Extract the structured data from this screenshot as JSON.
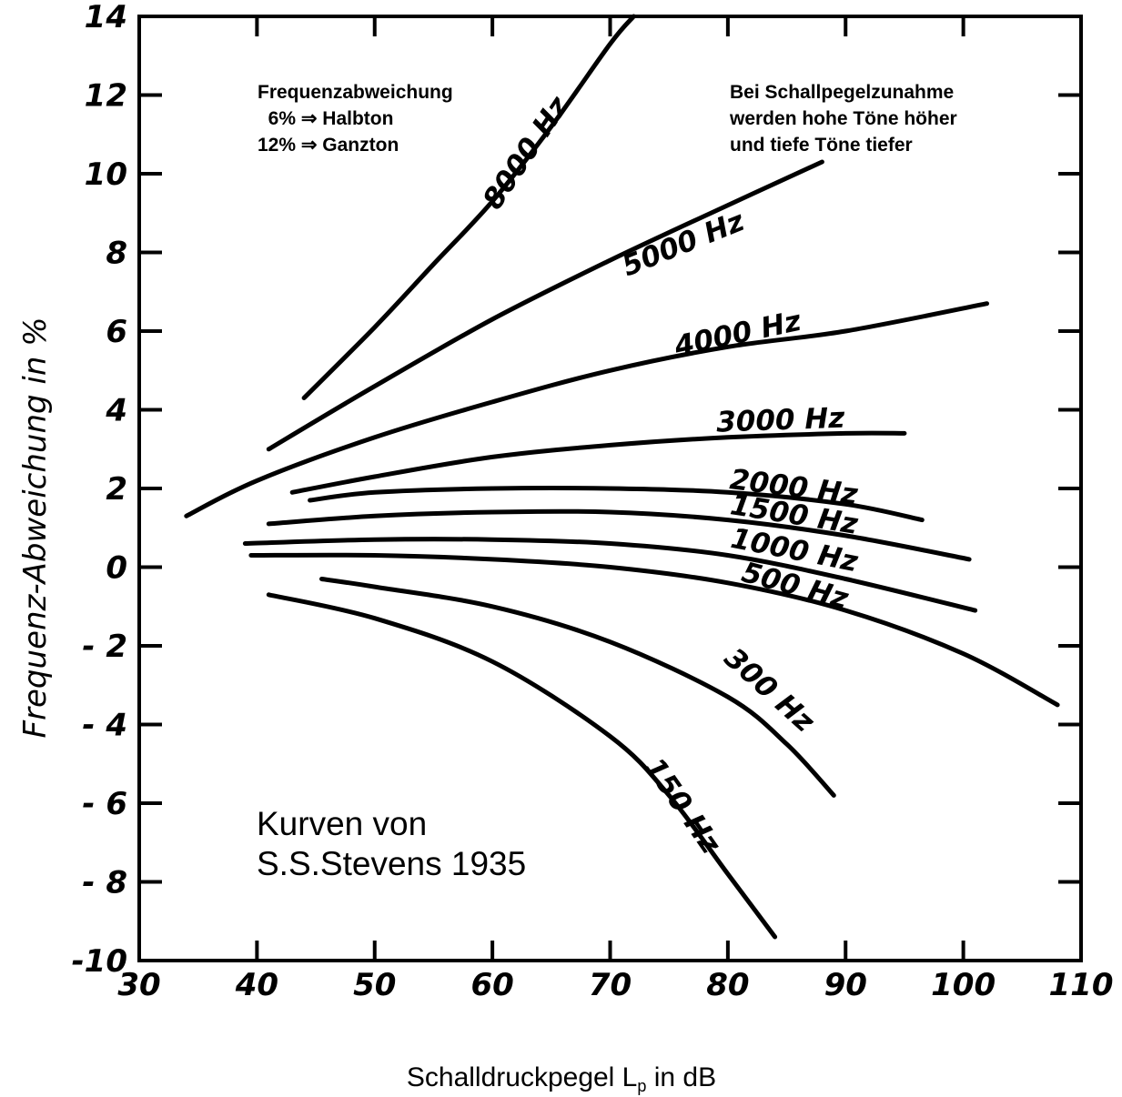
{
  "chart_data": {
    "type": "line",
    "title": "",
    "xlabel": "Schalldruckpegel L",
    "xlabel_subscript": "p",
    "xlabel_suffix": " in dB",
    "ylabel": "Frequenz-Abweichung in %",
    "xlim": [
      30,
      110
    ],
    "ylim": [
      -10,
      14
    ],
    "x_ticks": [
      30,
      40,
      50,
      60,
      70,
      80,
      90,
      100,
      110
    ],
    "x_tick_labels": [
      "30",
      "40",
      "50",
      "60",
      "70",
      "80",
      "90",
      "100",
      "110"
    ],
    "y_ticks": [
      -10,
      -8,
      -6,
      -4,
      -2,
      0,
      2,
      4,
      6,
      8,
      10,
      12,
      14
    ],
    "y_tick_labels": [
      "-10",
      "- 8",
      "- 6",
      "- 4",
      "- 2",
      "0",
      "2",
      "4",
      "6",
      "8",
      "10",
      "12",
      "14"
    ],
    "grid": false,
    "series": [
      {
        "name": "8000 Hz",
        "x": [
          44,
          50,
          55,
          60,
          65,
          70,
          72
        ],
        "y": [
          4.3,
          6.1,
          7.7,
          9.3,
          11.2,
          13.3,
          14.0
        ]
      },
      {
        "name": "5000 Hz",
        "x": [
          41,
          50,
          60,
          70,
          80,
          88
        ],
        "y": [
          3.0,
          4.6,
          6.3,
          7.8,
          9.2,
          10.3
        ]
      },
      {
        "name": "4000 Hz",
        "x": [
          34,
          40,
          50,
          60,
          70,
          80,
          90,
          102
        ],
        "y": [
          1.3,
          2.2,
          3.3,
          4.2,
          5.0,
          5.6,
          6.0,
          6.7
        ]
      },
      {
        "name": "3000 Hz",
        "x": [
          43,
          50,
          60,
          70,
          80,
          90,
          95
        ],
        "y": [
          1.9,
          2.3,
          2.8,
          3.1,
          3.3,
          3.4,
          3.4
        ]
      },
      {
        "name": "2000 Hz",
        "x": [
          44.5,
          50,
          60,
          70,
          80,
          90,
          96.5
        ],
        "y": [
          1.7,
          1.9,
          2.0,
          2.0,
          1.9,
          1.6,
          1.2
        ]
      },
      {
        "name": "1500 Hz",
        "x": [
          41,
          50,
          60,
          70,
          80,
          90,
          100.5
        ],
        "y": [
          1.1,
          1.3,
          1.4,
          1.4,
          1.2,
          0.8,
          0.2
        ]
      },
      {
        "name": "1000 Hz",
        "x": [
          39,
          50,
          60,
          70,
          80,
          90,
          101
        ],
        "y": [
          0.6,
          0.7,
          0.7,
          0.6,
          0.3,
          -0.3,
          -1.1
        ]
      },
      {
        "name": "500 Hz",
        "x": [
          39.5,
          50,
          60,
          70,
          80,
          90,
          100,
          108
        ],
        "y": [
          0.3,
          0.3,
          0.2,
          0.0,
          -0.4,
          -1.1,
          -2.2,
          -3.5
        ]
      },
      {
        "name": "300 Hz",
        "x": [
          45.5,
          50,
          60,
          70,
          80,
          85,
          89
        ],
        "y": [
          -0.3,
          -0.5,
          -1.0,
          -1.9,
          -3.3,
          -4.5,
          -5.8
        ]
      },
      {
        "name": "150 Hz",
        "x": [
          41,
          50,
          60,
          70,
          75,
          80,
          84
        ],
        "y": [
          -0.7,
          -1.3,
          -2.4,
          -4.3,
          -5.8,
          -7.8,
          -9.4
        ]
      }
    ],
    "series_labels": [
      "8000 Hz",
      "5000 Hz",
      "4000 Hz",
      "3000 Hz",
      "2000 Hz",
      "1500 Hz",
      "1000 Hz",
      "500 Hz",
      "300 Hz",
      "150 Hz"
    ],
    "annotations": {
      "frequency_note": [
        "Frequenzabweichung",
        "  6% ⇒ Halbton",
        "12% ⇒ Ganzton"
      ],
      "trend_note": [
        "Bei Schallpegelzunahme",
        "werden hohe Töne höher",
        "und tiefe Töne tiefer"
      ],
      "credit": [
        "Kurven von",
        "S.S.Stevens 1935"
      ]
    }
  }
}
